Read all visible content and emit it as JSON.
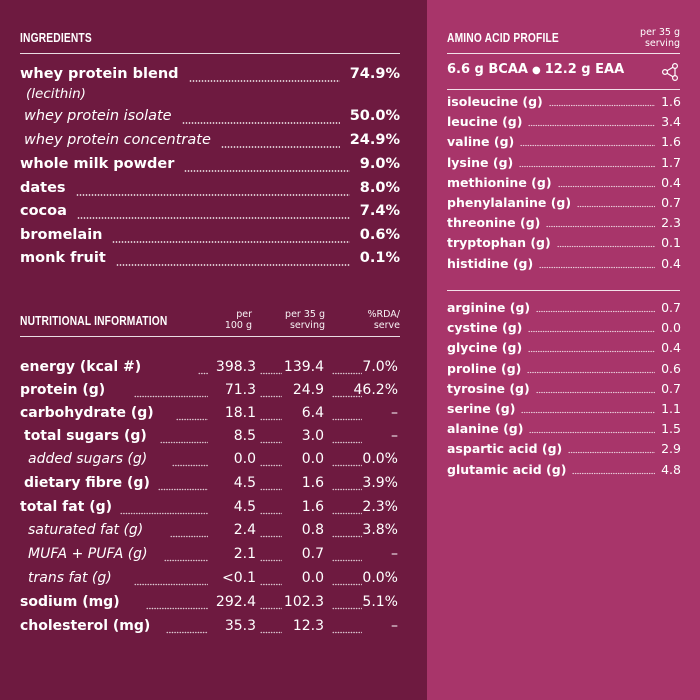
{
  "colors": {
    "left_panel": "#6e1a40",
    "right_panel": "#a8356a",
    "text": "#ffffff"
  },
  "ingredients": {
    "title": "INGREDIENTS",
    "items": [
      {
        "label": "whey protein blend",
        "value": "74.9%"
      },
      {
        "label": "whey protein isolate",
        "value": "50.0%"
      },
      {
        "label": "whey protein concentrate",
        "value": "24.9%"
      },
      {
        "label": "whole milk powder",
        "value": "9.0%"
      },
      {
        "label": "dates",
        "value": "8.0%"
      },
      {
        "label": "cocoa",
        "value": "7.4%"
      },
      {
        "label": "bromelain",
        "value": "0.6%"
      },
      {
        "label": "monk fruit",
        "value": "0.1%"
      }
    ],
    "note": "(lecithin)"
  },
  "nutrition": {
    "title": "NUTRITIONAL INFORMATION",
    "columns": [
      "per 100 g",
      "per 35 g serving",
      "%RDA/ serve"
    ],
    "col_lines": [
      [
        "per",
        "100 g"
      ],
      [
        "per 35 g",
        "serving"
      ],
      [
        "%RDA/",
        "serve"
      ]
    ],
    "rows": [
      {
        "label": "energy (kcal #)",
        "per100": "398.3",
        "perServing": "139.4",
        "rda": "7.0%"
      },
      {
        "label": "protein (g)",
        "per100": "71.3",
        "perServing": "24.9",
        "rda": "46.2%"
      },
      {
        "label": "carbohydrate (g)",
        "per100": "18.1",
        "perServing": "6.4",
        "rda": "–"
      },
      {
        "label": "total sugars (g)",
        "per100": "8.5",
        "perServing": "3.0",
        "rda": "–"
      },
      {
        "label": "added sugars (g)",
        "per100": "0.0",
        "perServing": "0.0",
        "rda": "0.0%"
      },
      {
        "label": "dietary fibre (g)",
        "per100": "4.5",
        "perServing": "1.6",
        "rda": "3.9%"
      },
      {
        "label": "total fat (g)",
        "per100": "4.5",
        "perServing": "1.6",
        "rda": "2.3%"
      },
      {
        "label": "saturated fat (g)",
        "per100": "2.4",
        "perServing": "0.8",
        "rda": "3.8%"
      },
      {
        "label": "MUFA + PUFA (g)",
        "per100": "2.1",
        "perServing": "0.7",
        "rda": "–"
      },
      {
        "label": "trans fat (g)",
        "per100": "<0.1",
        "perServing": "0.0",
        "rda": "0.0%"
      },
      {
        "label": "sodium (mg)",
        "per100": "292.4",
        "perServing": "102.3",
        "rda": "5.1%"
      },
      {
        "label": "cholesterol (mg)",
        "per100": "35.3",
        "perServing": "12.3",
        "rda": "–"
      }
    ]
  },
  "amino": {
    "title": "AMINO ACID PROFILE",
    "subtitle_lines": [
      "per 35 g",
      "serving"
    ],
    "bcaa": "6.6 g BCAA",
    "eaa": "12.2 g EAA",
    "essential": [
      {
        "label": "isoleucine (g)",
        "value": "1.6"
      },
      {
        "label": "leucine (g)",
        "value": "3.4"
      },
      {
        "label": "valine (g)",
        "value": "1.6"
      },
      {
        "label": "lysine (g)",
        "value": "1.7"
      },
      {
        "label": "methionine (g)",
        "value": "0.4"
      },
      {
        "label": "phenylalanine (g)",
        "value": "0.7"
      },
      {
        "label": "threonine (g)",
        "value": "2.3"
      },
      {
        "label": "tryptophan (g)",
        "value": "0.1"
      },
      {
        "label": "histidine (g)",
        "value": "0.4"
      }
    ],
    "nonessential": [
      {
        "label": "arginine (g)",
        "value": "0.7"
      },
      {
        "label": "cystine (g)",
        "value": "0.0"
      },
      {
        "label": "glycine (g)",
        "value": "0.4"
      },
      {
        "label": "proline (g)",
        "value": "0.6"
      },
      {
        "label": "tyrosine (g)",
        "value": "0.7"
      },
      {
        "label": "serine (g)",
        "value": "1.1"
      },
      {
        "label": "alanine (g)",
        "value": "1.5"
      },
      {
        "label": "aspartic acid (g)",
        "value": "2.9"
      },
      {
        "label": "glutamic acid (g)",
        "value": "4.8"
      }
    ],
    "icon": "share-molecule-icon"
  }
}
